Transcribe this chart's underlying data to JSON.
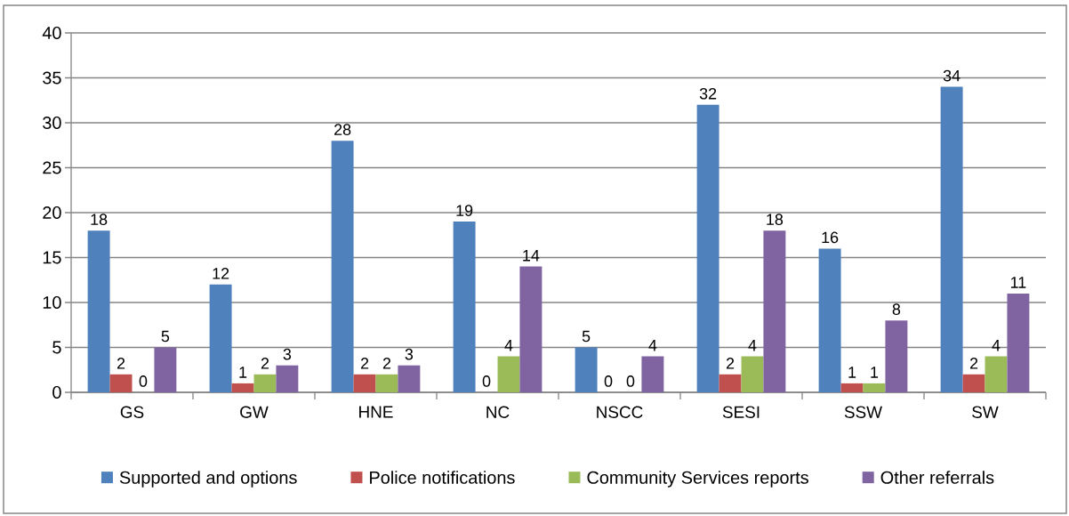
{
  "chart_data": {
    "type": "bar",
    "categories": [
      "GS",
      "GW",
      "HNE",
      "NC",
      "NSCC",
      "SESI",
      "SSW",
      "SW"
    ],
    "series": [
      {
        "name": "Supported and options",
        "color": "#4f81bd",
        "values": [
          18,
          12,
          28,
          19,
          5,
          32,
          16,
          34
        ]
      },
      {
        "name": "Police notifications",
        "color": "#c0504d",
        "values": [
          2,
          1,
          2,
          0,
          0,
          2,
          1,
          2
        ]
      },
      {
        "name": "Community Services reports",
        "color": "#9bbb59",
        "values": [
          0,
          2,
          2,
          4,
          0,
          4,
          1,
          4
        ]
      },
      {
        "name": "Other referrals",
        "color": "#8064a2",
        "values": [
          5,
          3,
          3,
          14,
          4,
          18,
          8,
          11
        ]
      }
    ],
    "ylim": [
      0,
      40
    ],
    "yticks": [
      0,
      5,
      10,
      15,
      20,
      25,
      30,
      35,
      40
    ],
    "grid": "y",
    "legend": "bottom",
    "data_labels": true
  }
}
